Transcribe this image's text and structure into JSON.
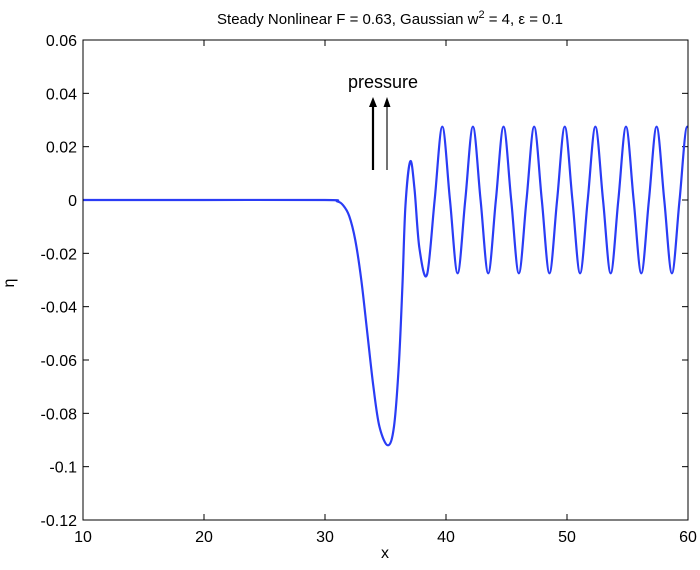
{
  "chart_data": {
    "type": "line",
    "title": {
      "main": "Steady Nonlinear F = 0.63, Gaussian w",
      "sup": "2",
      "rest": " = 4, ε = 0.1"
    },
    "xlabel": "x",
    "ylabel": "η",
    "xlim": [
      10,
      60
    ],
    "ylim": [
      -0.12,
      0.06
    ],
    "xticks": [
      10,
      20,
      30,
      40,
      50,
      60
    ],
    "yticks": [
      0.06,
      0.04,
      0.02,
      0,
      -0.02,
      -0.04,
      -0.06,
      -0.08,
      -0.1,
      -0.12
    ],
    "ytick_labels": [
      "0.06",
      "0.04",
      "0.02",
      "0",
      "-0.02",
      "-0.04",
      "-0.06",
      "-0.08",
      "-0.1",
      "-0.12"
    ],
    "grid": false,
    "annotation": {
      "text": "pressure",
      "x": 35,
      "arrow_from_y": 0.01,
      "arrow_to_y": 0.037
    },
    "series": [
      {
        "name": "eta",
        "color": "#2a3cf5",
        "points": [
          [
            10,
            0
          ],
          [
            20,
            0
          ],
          [
            30,
            0
          ],
          [
            31,
            -0.0005
          ],
          [
            31.5,
            -0.002
          ],
          [
            32,
            -0.006
          ],
          [
            32.5,
            -0.015
          ],
          [
            33,
            -0.03
          ],
          [
            33.5,
            -0.05
          ],
          [
            34,
            -0.07
          ],
          [
            34.5,
            -0.085
          ],
          [
            35.2,
            -0.092
          ],
          [
            35.7,
            -0.085
          ],
          [
            36.1,
            -0.062
          ],
          [
            36.4,
            -0.032
          ],
          [
            36.65,
            -0.002
          ],
          [
            37.05,
            0.0145
          ],
          [
            37.4,
            0.004
          ],
          [
            37.8,
            -0.018
          ],
          [
            38.43,
            -0.028
          ]
        ],
        "oscillation": {
          "amplitude": 0.0275,
          "wavelength": 2.53,
          "first_peak_x": 39.7,
          "until_x": 60
        }
      }
    ]
  }
}
